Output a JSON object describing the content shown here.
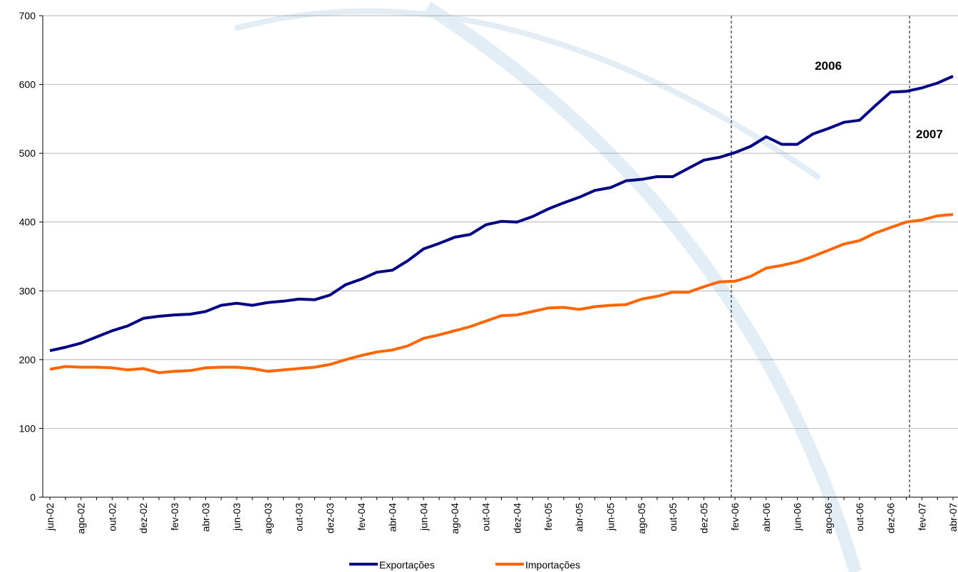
{
  "chart_data": {
    "type": "line",
    "categories": [
      "jun-02",
      null,
      "ago-02",
      null,
      "out-02",
      null,
      "dez-02",
      null,
      "fev-03",
      null,
      "abr-03",
      null,
      "jun-03",
      null,
      "ago-03",
      null,
      "out-03",
      null,
      "dez-03",
      null,
      "fev-04",
      null,
      "abr-04",
      null,
      "jun-04",
      null,
      "ago-04",
      null,
      "out-04",
      null,
      "dez-04",
      null,
      "fev-05",
      null,
      "abr-05",
      null,
      "jun-05",
      null,
      "ago-05",
      null,
      "out-05",
      null,
      "dez-05",
      null,
      "fev-06",
      null,
      "abr-06",
      null,
      "jun-06",
      null,
      "ago-06",
      null,
      "out-06",
      null,
      "dez-06",
      null,
      "fev-07",
      null,
      "abr-07"
    ],
    "series": [
      {
        "name": "Exportações",
        "color": "#000080",
        "values": [
          213,
          218,
          224,
          233,
          242,
          249,
          260,
          263,
          265,
          266,
          270,
          279,
          282,
          279,
          283,
          285,
          288,
          287,
          294,
          309,
          317,
          327,
          330,
          344,
          361,
          369,
          378,
          382,
          396,
          401,
          400,
          408,
          419,
          428,
          436,
          446,
          450,
          460,
          462,
          466,
          466,
          478,
          490,
          494,
          501,
          510,
          524,
          513,
          513,
          528,
          536,
          545,
          548,
          569,
          589,
          590,
          595,
          602,
          612
        ]
      },
      {
        "name": "Importações",
        "color": "#ff6600",
        "values": [
          186,
          190,
          189,
          189,
          188,
          185,
          187,
          181,
          183,
          184,
          188,
          189,
          189,
          187,
          183,
          185,
          187,
          189,
          193,
          200,
          206,
          211,
          214,
          220,
          231,
          236,
          242,
          248,
          256,
          264,
          265,
          270,
          275,
          276,
          273,
          277,
          279,
          280,
          288,
          292,
          298,
          298,
          306,
          313,
          314,
          321,
          333,
          337,
          342,
          350,
          359,
          368,
          373,
          384,
          392,
          400,
          403,
          409,
          411
        ]
      }
    ],
    "annotations": [
      "2006",
      "2007"
    ],
    "ylim": [
      0,
      700
    ],
    "yticks": [
      0,
      100,
      200,
      300,
      400,
      500,
      600,
      700
    ],
    "grid": true
  }
}
